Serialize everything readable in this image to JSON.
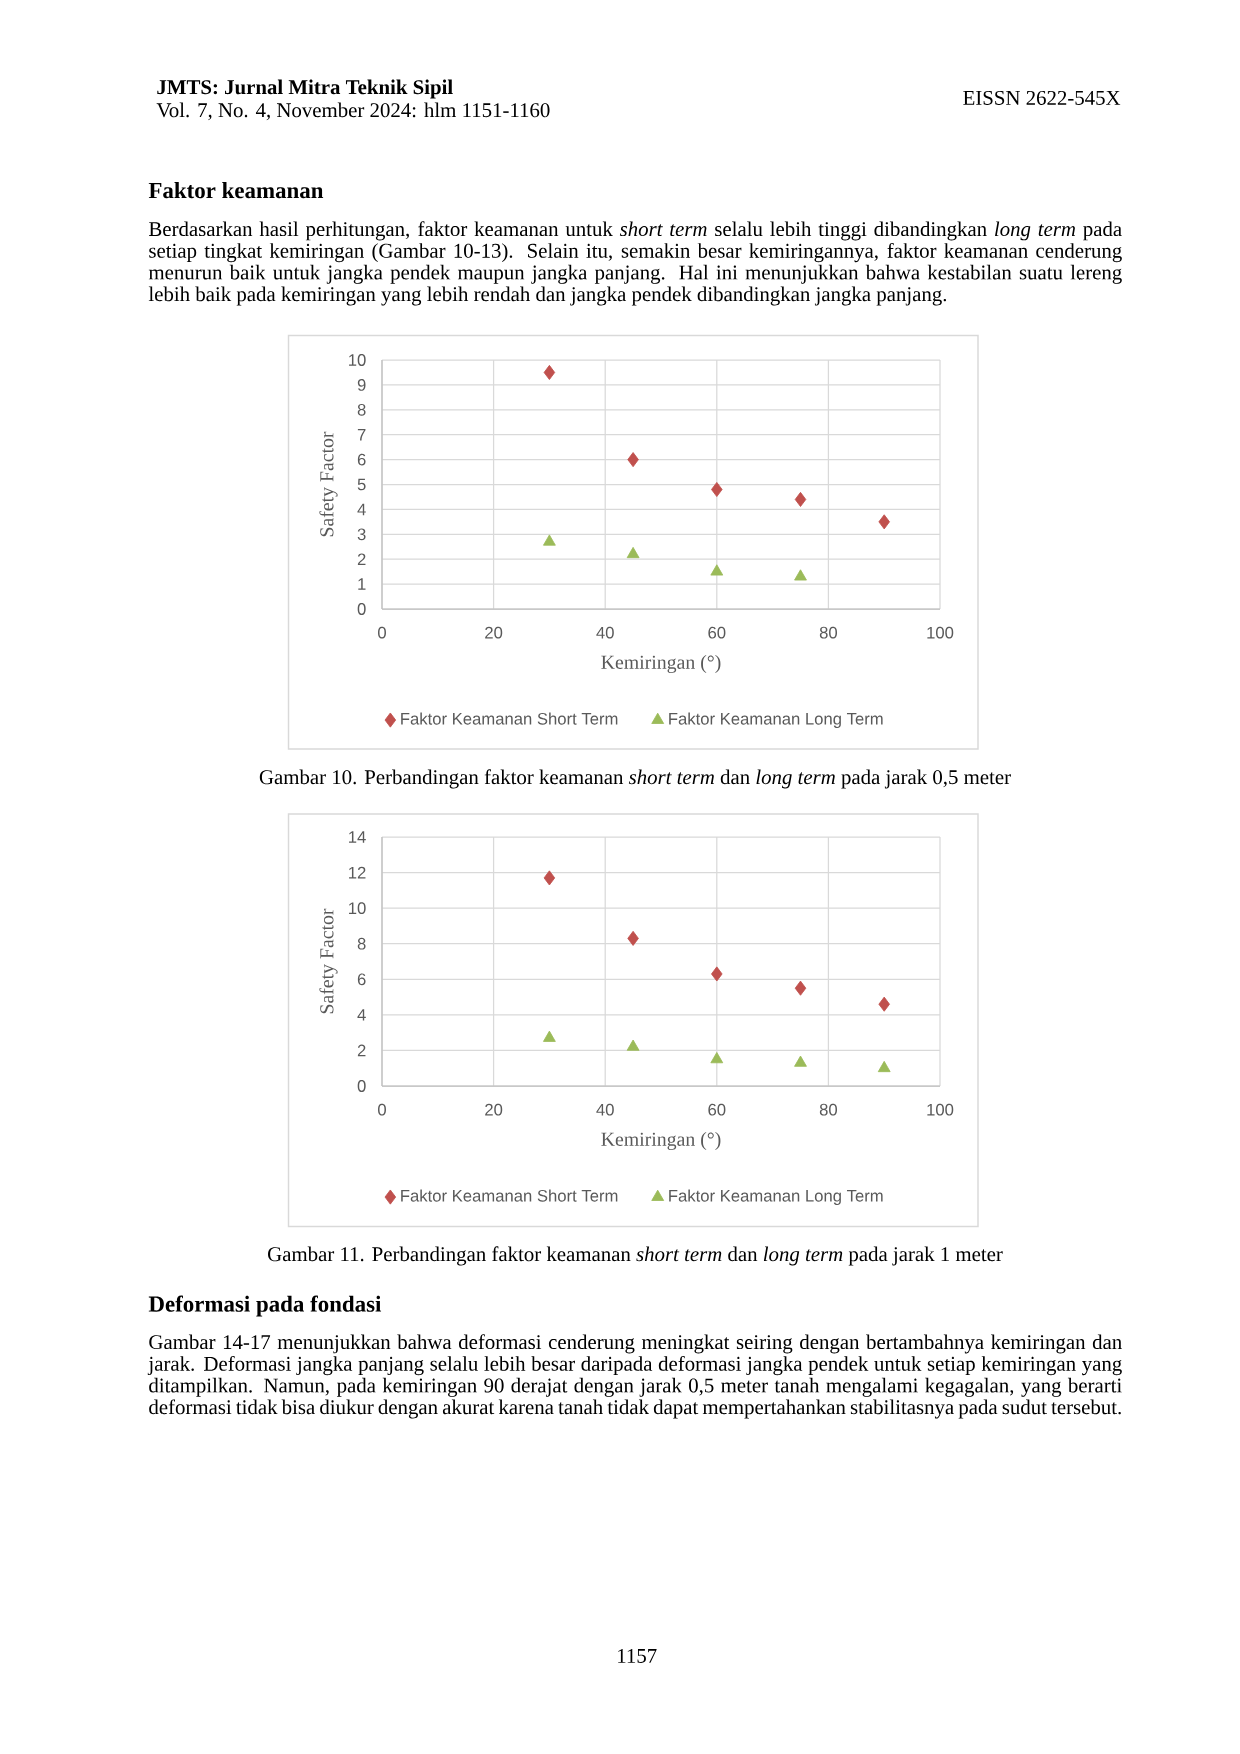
{
  "chart_data": [
    {
      "type": "scatter",
      "xlabel": "Kemiringan (°)",
      "ylabel": "Safety Factor",
      "xlim": [
        0,
        100
      ],
      "xticks": [
        0,
        20,
        40,
        60,
        80,
        100
      ],
      "ylim": [
        0,
        10
      ],
      "yticks": [
        0,
        1,
        2,
        3,
        4,
        5,
        6,
        7,
        8,
        9,
        10
      ],
      "grid": true,
      "legend": "bottom",
      "series": [
        {
          "name": "Faktor Keamanan Short Term",
          "color": "#c0504d",
          "marker": "diamond",
          "x": [
            30,
            45,
            60,
            75,
            90
          ],
          "values": [
            9.5,
            6.0,
            4.8,
            4.4,
            3.5
          ]
        },
        {
          "name": "Faktor Keamanan Long Term",
          "color": "#9bbb59",
          "marker": "triangle",
          "x": [
            30,
            45,
            60,
            75
          ],
          "values": [
            2.7,
            2.2,
            1.5,
            1.3
          ]
        }
      ],
      "annotations": [
        "JMTS: Jurnal Mitra Teknik Sipil",
        "Vol. 7, No. 4, November 2024: hlm 1151-1160",
        "EISSN 2622-545X",
        "Faktor keamanan",
        "Berdasarkan hasil perhitungan, faktor keamanan untuk *short term* selalu lebih tinggi dibandingkan *long term* pada setiap tingkat kemiringan (Gambar 10-13). Selain itu, semakin besar kemiringannya, faktor keamanan cenderung menurun baik untuk jangka pendek maupun jangka panjang. Hal ini menunjukkan bahwa kestabilan suatu lereng lebih baik pada kemiringan yang lebih rendah dan jangka pendek dibandingkan jangka panjang.",
        "Gambar 10. Perbandingan faktor keamanan *short term* dan *long term* pada jarak 0,5 meter"
      ]
    },
    {
      "type": "scatter",
      "xlabel": "Kemiringan (°)",
      "ylabel": "Safety Factor",
      "x": [
        30,
        45,
        60,
        75,
        90
      ],
      "xlim": [
        0,
        100
      ],
      "xticks": [
        0,
        20,
        40,
        60,
        80,
        100
      ],
      "ylim": [
        0,
        14
      ],
      "yticks": [
        0,
        2,
        4,
        6,
        8,
        10,
        12,
        14
      ],
      "grid": true,
      "legend": "bottom",
      "series": [
        {
          "name": "Faktor Keamanan Short Term",
          "color": "#c0504d",
          "marker": "diamond",
          "values": [
            11.7,
            8.3,
            6.3,
            5.5,
            4.6
          ]
        },
        {
          "name": "Faktor Keamanan Long Term",
          "color": "#9bbb59",
          "marker": "triangle",
          "values": [
            2.7,
            2.2,
            1.5,
            1.3,
            1.0
          ]
        }
      ],
      "annotations": [
        "Gambar 11. Perbandingan faktor keamanan *short term* dan *long term* pada jarak 1 meter",
        "Deformasi pada fondasi",
        "Gambar 14-17 menunjukkan bahwa deformasi cenderung meningkat seiring dengan bertambahnya kemiringan dan jarak. Deformasi jangka panjang selalu lebih besar daripada deformasi jangka pendek untuk setiap kemiringan yang ditampilkan. Namun, pada kemiringan 90 derajat dengan jarak 0,5 meter tanah mengalami kegagalan, yang berarti deformasi tidak bisa diukur dengan akurat karena tanah tidak dapat mempertahankan stabilitasnya pada sudut tersebut.",
        "1157"
      ]
    }
  ]
}
